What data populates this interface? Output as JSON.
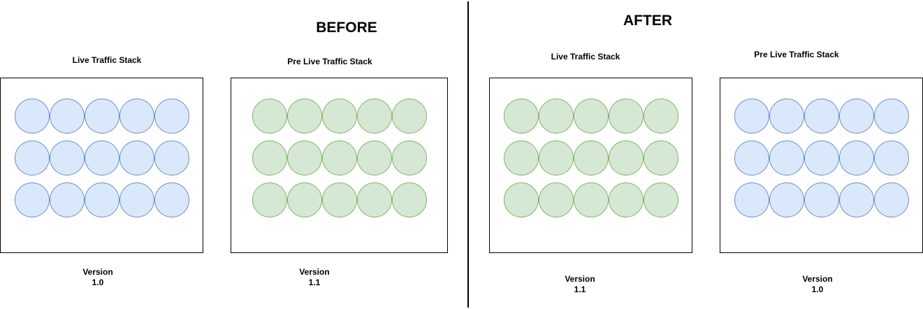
{
  "before": {
    "title": "BEFORE",
    "live": {
      "label": "Live Traffic Stack",
      "version_label": "Version",
      "version": "1.0",
      "color": "blue"
    },
    "prelive": {
      "label": "Pre Live Traffic Stack",
      "version_label": "Version",
      "version": "1.1",
      "color": "green"
    }
  },
  "after": {
    "title": "AFTER",
    "live": {
      "label": "Live Traffic Stack",
      "version_label": "Version",
      "version": "1.1",
      "color": "green"
    },
    "prelive": {
      "label": "Pre Live Traffic Stack",
      "version_label": "Version",
      "version": "1.0",
      "color": "blue"
    }
  },
  "colors": {
    "blue_fill": "#dae8fc",
    "blue_stroke": "#6c8ebf",
    "green_fill": "#d5e8d4",
    "green_stroke": "#82b366"
  },
  "grid": {
    "rows": 3,
    "cols": 5
  }
}
